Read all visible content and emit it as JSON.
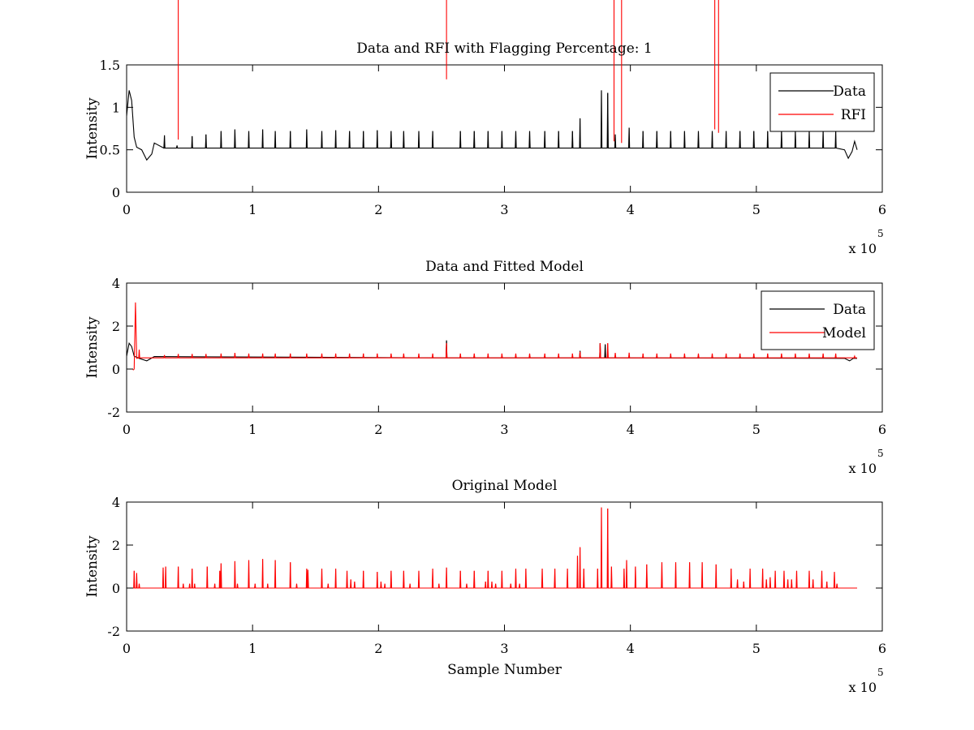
{
  "chart_data": [
    {
      "type": "line",
      "title": "Data and RFI with Flagging Percentage: 1",
      "xlabel": "",
      "ylabel": "Intensity",
      "xlim": [
        0,
        6
      ],
      "ylim": [
        0,
        1.5
      ],
      "xticks": [
        "0",
        "1",
        "2",
        "3",
        "4",
        "5",
        "6"
      ],
      "yticks": [
        "0",
        "0.5",
        "1",
        "1.5"
      ],
      "x_multiplier": {
        "base": "x 10",
        "exponent": "5"
      },
      "legend": {
        "position": "top-right"
      },
      "series": [
        {
          "name": "Data",
          "color": "#000000",
          "baseline": 0.52,
          "start_bump": [
            [
              0.0,
              0.9
            ],
            [
              0.02,
              1.2
            ],
            [
              0.04,
              1.08
            ],
            [
              0.06,
              0.65
            ],
            [
              0.08,
              0.53
            ],
            [
              0.12,
              0.5
            ],
            [
              0.16,
              0.38
            ],
            [
              0.2,
              0.45
            ],
            [
              0.22,
              0.58
            ]
          ],
          "end_bump": [
            [
              5.7,
              0.5
            ],
            [
              5.73,
              0.4
            ],
            [
              5.76,
              0.48
            ],
            [
              5.78,
              0.6
            ],
            [
              5.8,
              0.5
            ]
          ],
          "spikes": [
            [
              0.3,
              0.67
            ],
            [
              0.4,
              0.55
            ],
            [
              0.52,
              0.66
            ],
            [
              0.63,
              0.68
            ],
            [
              0.75,
              0.72
            ],
            [
              0.86,
              0.74
            ],
            [
              0.97,
              0.72
            ],
            [
              1.08,
              0.74
            ],
            [
              1.18,
              0.72
            ],
            [
              1.3,
              0.72
            ],
            [
              1.43,
              0.74
            ],
            [
              1.55,
              0.72
            ],
            [
              1.66,
              0.73
            ],
            [
              1.77,
              0.72
            ],
            [
              1.88,
              0.72
            ],
            [
              1.99,
              0.73
            ],
            [
              2.1,
              0.72
            ],
            [
              2.2,
              0.72
            ],
            [
              2.32,
              0.72
            ],
            [
              2.43,
              0.72
            ],
            [
              2.65,
              0.72
            ],
            [
              2.76,
              0.72
            ],
            [
              2.87,
              0.72
            ],
            [
              2.98,
              0.72
            ],
            [
              3.09,
              0.72
            ],
            [
              3.2,
              0.72
            ],
            [
              3.32,
              0.72
            ],
            [
              3.43,
              0.72
            ],
            [
              3.54,
              0.72
            ],
            [
              3.6,
              0.87
            ],
            [
              3.77,
              1.2
            ],
            [
              3.82,
              1.17
            ],
            [
              3.88,
              0.68
            ],
            [
              3.99,
              0.76
            ],
            [
              4.1,
              0.72
            ],
            [
              4.21,
              0.72
            ],
            [
              4.32,
              0.72
            ],
            [
              4.43,
              0.72
            ],
            [
              4.54,
              0.72
            ],
            [
              4.65,
              0.72
            ],
            [
              4.76,
              0.72
            ],
            [
              4.87,
              0.72
            ],
            [
              4.98,
              0.72
            ],
            [
              5.09,
              0.72
            ],
            [
              5.2,
              0.72
            ],
            [
              5.31,
              0.72
            ],
            [
              5.42,
              0.72
            ],
            [
              5.53,
              0.72
            ],
            [
              5.63,
              0.72
            ]
          ]
        },
        {
          "name": "RFI",
          "color": "#ff0000",
          "spikes": [
            [
              0.41,
              0.62
            ],
            [
              2.54,
              1.33
            ],
            [
              3.87,
              0.6
            ],
            [
              3.93,
              0.58
            ],
            [
              4.67,
              0.74
            ],
            [
              4.7,
              0.7
            ]
          ]
        }
      ]
    },
    {
      "type": "line",
      "title": "Data and Fitted Model",
      "xlabel": "",
      "ylabel": "Intensity",
      "xlim": [
        0,
        6
      ],
      "ylim": [
        -2,
        4
      ],
      "xticks": [
        "0",
        "1",
        "2",
        "3",
        "4",
        "5",
        "6"
      ],
      "yticks": [
        "-2",
        "0",
        "2",
        "4"
      ],
      "x_multiplier": {
        "base": "x 10",
        "exponent": "5"
      },
      "legend": {
        "position": "top-right"
      },
      "series": [
        {
          "name": "Data",
          "color": "#000000",
          "baseline": 0.52,
          "start_bump": [
            [
              0.0,
              0.6
            ],
            [
              0.02,
              1.2
            ],
            [
              0.04,
              1.05
            ],
            [
              0.06,
              0.6
            ],
            [
              0.1,
              0.5
            ],
            [
              0.16,
              0.38
            ],
            [
              0.22,
              0.58
            ]
          ],
          "end_bump": [
            [
              5.7,
              0.5
            ],
            [
              5.74,
              0.38
            ],
            [
              5.77,
              0.5
            ],
            [
              5.8,
              0.5
            ]
          ],
          "spikes": [
            [
              2.54,
              1.33
            ],
            [
              3.6,
              0.85
            ],
            [
              3.76,
              1.2
            ],
            [
              3.8,
              1.15
            ]
          ]
        },
        {
          "name": "Model",
          "color": "#ff0000",
          "baseline": 0.52,
          "start_bump": [
            [
              0.05,
              -0.05
            ],
            [
              0.06,
              0.0
            ],
            [
              0.07,
              3.1
            ],
            [
              0.08,
              0.5
            ]
          ],
          "spikes": [
            [
              0.1,
              0.9
            ],
            [
              0.3,
              0.65
            ],
            [
              0.41,
              0.7
            ],
            [
              0.52,
              0.7
            ],
            [
              0.63,
              0.7
            ],
            [
              0.75,
              0.72
            ],
            [
              0.86,
              0.75
            ],
            [
              0.97,
              0.72
            ],
            [
              1.08,
              0.72
            ],
            [
              1.18,
              0.72
            ],
            [
              1.3,
              0.72
            ],
            [
              1.43,
              0.72
            ],
            [
              1.55,
              0.72
            ],
            [
              1.66,
              0.72
            ],
            [
              1.77,
              0.72
            ],
            [
              1.88,
              0.72
            ],
            [
              1.99,
              0.72
            ],
            [
              2.1,
              0.72
            ],
            [
              2.2,
              0.72
            ],
            [
              2.32,
              0.72
            ],
            [
              2.43,
              0.72
            ],
            [
              2.54,
              1.2
            ],
            [
              2.65,
              0.72
            ],
            [
              2.76,
              0.72
            ],
            [
              2.87,
              0.72
            ],
            [
              2.98,
              0.72
            ],
            [
              3.09,
              0.72
            ],
            [
              3.2,
              0.72
            ],
            [
              3.32,
              0.72
            ],
            [
              3.43,
              0.72
            ],
            [
              3.54,
              0.72
            ],
            [
              3.6,
              0.8
            ],
            [
              3.76,
              1.2
            ],
            [
              3.82,
              1.2
            ],
            [
              3.88,
              0.75
            ],
            [
              3.99,
              0.76
            ],
            [
              4.1,
              0.72
            ],
            [
              4.21,
              0.72
            ],
            [
              4.32,
              0.72
            ],
            [
              4.43,
              0.72
            ],
            [
              4.54,
              0.72
            ],
            [
              4.65,
              0.72
            ],
            [
              4.76,
              0.72
            ],
            [
              4.87,
              0.72
            ],
            [
              4.98,
              0.72
            ],
            [
              5.09,
              0.72
            ],
            [
              5.2,
              0.72
            ],
            [
              5.31,
              0.72
            ],
            [
              5.42,
              0.72
            ],
            [
              5.53,
              0.72
            ],
            [
              5.63,
              0.72
            ],
            [
              5.78,
              0.6
            ]
          ]
        }
      ]
    },
    {
      "type": "line",
      "title": "Original Model",
      "xlabel": "Sample Number",
      "ylabel": "Intensity",
      "xlim": [
        0,
        6
      ],
      "ylim": [
        -2,
        4
      ],
      "xticks": [
        "0",
        "1",
        "2",
        "3",
        "4",
        "5",
        "6"
      ],
      "yticks": [
        "-2",
        "0",
        "2",
        "4"
      ],
      "x_multiplier": {
        "base": "x 10",
        "exponent": "5"
      },
      "series": [
        {
          "color": "#ff0000",
          "baseline": 0.0,
          "x_range": [
            0.05,
            5.8
          ],
          "spikes": [
            [
              0.06,
              0.8
            ],
            [
              0.08,
              0.7
            ],
            [
              0.1,
              0.2
            ],
            [
              0.29,
              0.95
            ],
            [
              0.31,
              1.0
            ],
            [
              0.41,
              1.0
            ],
            [
              0.45,
              0.2
            ],
            [
              0.5,
              0.2
            ],
            [
              0.52,
              0.9
            ],
            [
              0.54,
              0.2
            ],
            [
              0.64,
              1.0
            ],
            [
              0.7,
              0.2
            ],
            [
              0.74,
              0.8
            ],
            [
              0.75,
              1.15
            ],
            [
              0.86,
              1.25
            ],
            [
              0.88,
              0.2
            ],
            [
              0.97,
              1.3
            ],
            [
              1.02,
              0.2
            ],
            [
              1.08,
              1.35
            ],
            [
              1.12,
              0.2
            ],
            [
              1.18,
              1.3
            ],
            [
              1.3,
              1.2
            ],
            [
              1.35,
              0.2
            ],
            [
              1.43,
              0.9
            ],
            [
              1.44,
              0.85
            ],
            [
              1.55,
              0.9
            ],
            [
              1.6,
              0.2
            ],
            [
              1.66,
              0.9
            ],
            [
              1.75,
              0.8
            ],
            [
              1.78,
              0.4
            ],
            [
              1.81,
              0.3
            ],
            [
              1.88,
              0.8
            ],
            [
              1.99,
              0.75
            ],
            [
              2.02,
              0.3
            ],
            [
              2.05,
              0.2
            ],
            [
              2.1,
              0.8
            ],
            [
              2.2,
              0.8
            ],
            [
              2.25,
              0.2
            ],
            [
              2.32,
              0.8
            ],
            [
              2.43,
              0.9
            ],
            [
              2.48,
              0.2
            ],
            [
              2.54,
              0.95
            ],
            [
              2.65,
              0.8
            ],
            [
              2.7,
              0.2
            ],
            [
              2.76,
              0.8
            ],
            [
              2.85,
              0.3
            ],
            [
              2.87,
              0.8
            ],
            [
              2.9,
              0.3
            ],
            [
              2.93,
              0.2
            ],
            [
              2.98,
              0.8
            ],
            [
              3.05,
              0.2
            ],
            [
              3.09,
              0.9
            ],
            [
              3.12,
              0.2
            ],
            [
              3.17,
              0.9
            ],
            [
              3.3,
              0.9
            ],
            [
              3.4,
              0.9
            ],
            [
              3.5,
              0.9
            ],
            [
              3.58,
              1.5
            ],
            [
              3.6,
              1.9
            ],
            [
              3.63,
              0.9
            ],
            [
              3.74,
              0.9
            ],
            [
              3.77,
              3.75
            ],
            [
              3.82,
              3.7
            ],
            [
              3.85,
              1.0
            ],
            [
              3.95,
              0.9
            ],
            [
              3.97,
              1.3
            ],
            [
              4.04,
              1.0
            ],
            [
              4.13,
              1.1
            ],
            [
              4.25,
              1.2
            ],
            [
              4.36,
              1.2
            ],
            [
              4.47,
              1.2
            ],
            [
              4.57,
              1.2
            ],
            [
              4.68,
              1.1
            ],
            [
              4.8,
              0.9
            ],
            [
              4.85,
              0.4
            ],
            [
              4.9,
              0.3
            ],
            [
              4.95,
              0.9
            ],
            [
              5.05,
              0.9
            ],
            [
              5.08,
              0.4
            ],
            [
              5.11,
              0.5
            ],
            [
              5.15,
              0.8
            ],
            [
              5.22,
              0.8
            ],
            [
              5.25,
              0.4
            ],
            [
              5.28,
              0.4
            ],
            [
              5.32,
              0.8
            ],
            [
              5.42,
              0.8
            ],
            [
              5.45,
              0.4
            ],
            [
              5.52,
              0.8
            ],
            [
              5.56,
              0.3
            ],
            [
              5.62,
              0.75
            ],
            [
              5.64,
              0.2
            ]
          ]
        }
      ]
    }
  ]
}
